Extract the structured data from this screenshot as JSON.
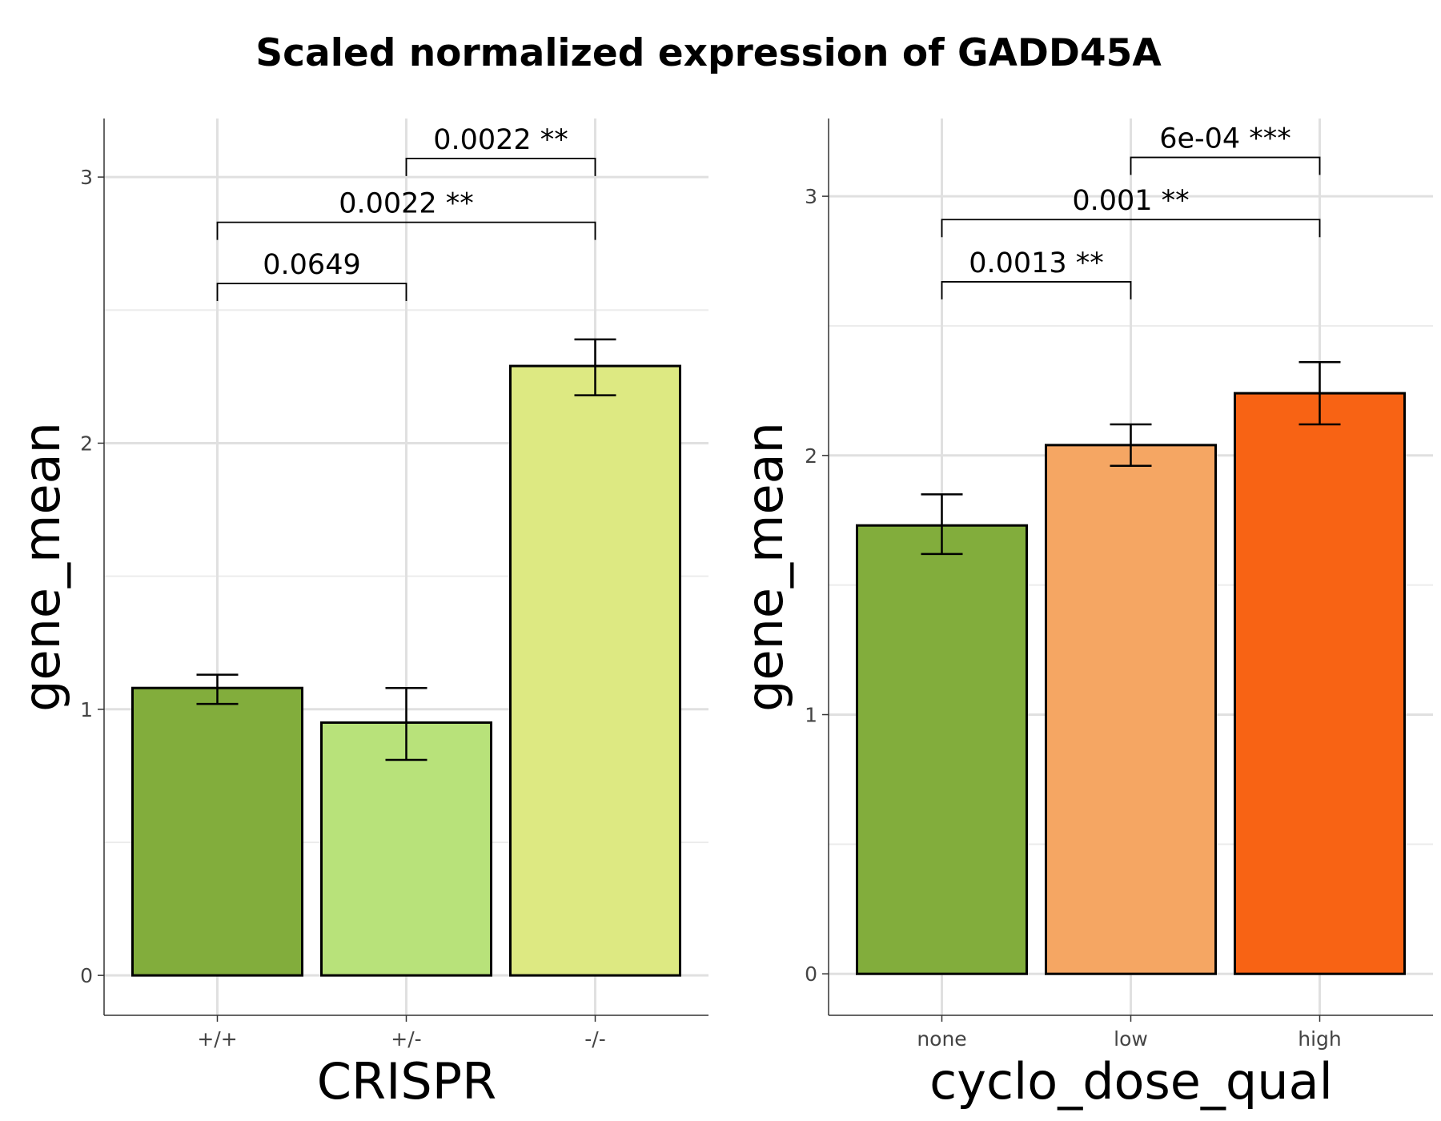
{
  "title": "Scaled normalized expression of GADD45A",
  "chart_data": [
    {
      "type": "bar",
      "xlabel": "CRISPR",
      "ylabel": "gene_mean",
      "categories": [
        "+/+",
        "+/-",
        "-/-"
      ],
      "values": [
        1.08,
        0.95,
        2.29
      ],
      "error_low": [
        1.02,
        0.81,
        2.18
      ],
      "error_high": [
        1.13,
        1.08,
        2.39
      ],
      "colors": [
        "#82ad3c",
        "#b8e27a",
        "#dde982"
      ],
      "ylim": [
        -0.15,
        3.22
      ],
      "yticks": [
        0,
        1,
        2,
        3
      ],
      "grid": true,
      "comparisons": [
        {
          "from": 0,
          "to": 1,
          "y": 2.6,
          "label": "0.0649"
        },
        {
          "from": 0,
          "to": 2,
          "y": 2.83,
          "label": "0.0022 **"
        },
        {
          "from": 1,
          "to": 2,
          "y": 3.07,
          "label": "0.0022 **"
        }
      ]
    },
    {
      "type": "bar",
      "xlabel": "cyclo_dose_qual",
      "ylabel": "gene_mean",
      "categories": [
        "none",
        "low",
        "high"
      ],
      "values": [
        1.73,
        2.04,
        2.24
      ],
      "error_low": [
        1.62,
        1.96,
        2.12
      ],
      "error_high": [
        1.85,
        2.12,
        2.36
      ],
      "colors": [
        "#82ad3c",
        "#f5a663",
        "#f86314"
      ],
      "ylim": [
        -0.16,
        3.3
      ],
      "yticks": [
        0,
        1,
        2,
        3
      ],
      "grid": true,
      "comparisons": [
        {
          "from": 0,
          "to": 1,
          "y": 2.67,
          "label": "0.0013 **"
        },
        {
          "from": 0,
          "to": 2,
          "y": 2.91,
          "label": "0.001 **"
        },
        {
          "from": 1,
          "to": 2,
          "y": 3.15,
          "label": "6e-04 ***"
        }
      ]
    }
  ]
}
